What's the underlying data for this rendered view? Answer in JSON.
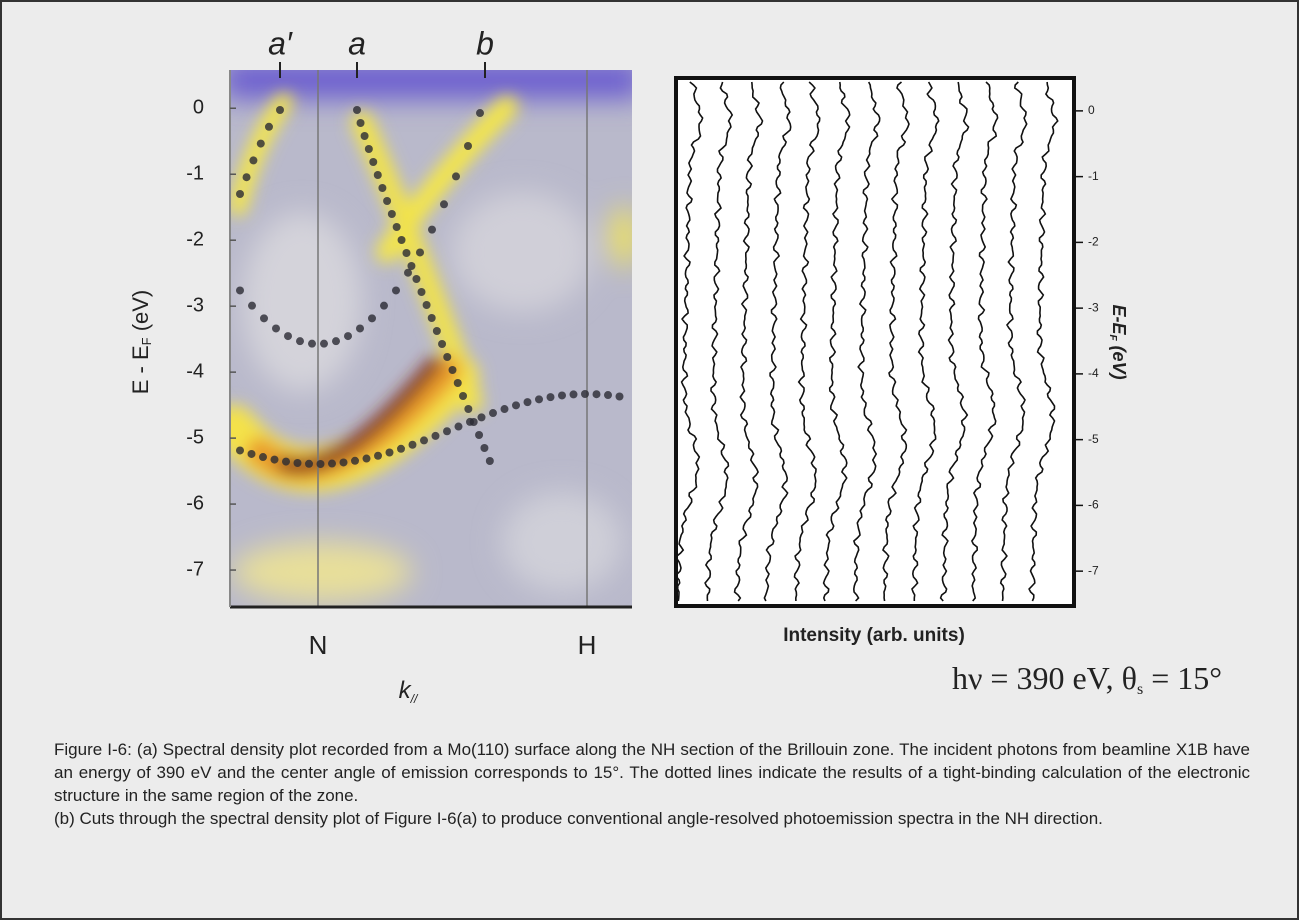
{
  "figure": {
    "panel_a": {
      "band_labels": [
        "a′",
        "a",
        "b"
      ],
      "ylabel": {
        "main": "E - E",
        "sub": "F",
        "tail": " (eV)"
      },
      "ylim": [
        0.58,
        -7.56
      ],
      "yticks": [
        0,
        -1,
        -2,
        -3,
        -4,
        -5,
        -6,
        -7
      ],
      "xticks": [
        "N",
        "H"
      ],
      "xlabel": {
        "main": "k",
        "sub": "//"
      }
    },
    "panel_b": {
      "ylabel": {
        "main": "E-E",
        "sub": "F",
        "tail": " (eV)"
      },
      "ylim": [
        0.5,
        -7.53
      ],
      "yticks": [
        0,
        -1,
        -2,
        -3,
        -4,
        -5,
        -6,
        -7
      ],
      "xlabel": "Intensity (arb. units)"
    },
    "conditions": {
      "main": "hν = 390 eV, θ",
      "sub": "s",
      "tail": " = 15°"
    }
  },
  "caption": [
    "Figure I-6:  (a) Spectral density plot recorded from a Mo(110) surface along the NH section of the Brillouin zone.  The incident photons from beamline X1B have an energy of 390 eV and the center angle of emission corresponds to 15°.  The dotted lines indicate the results of a tight-binding calculation of the electronic structure in the same region of the zone.",
    "(b) Cuts through the spectral density plot of Figure I-6(a) to produce conventional angle-resolved photoemission spectra in the NH direction."
  ]
}
